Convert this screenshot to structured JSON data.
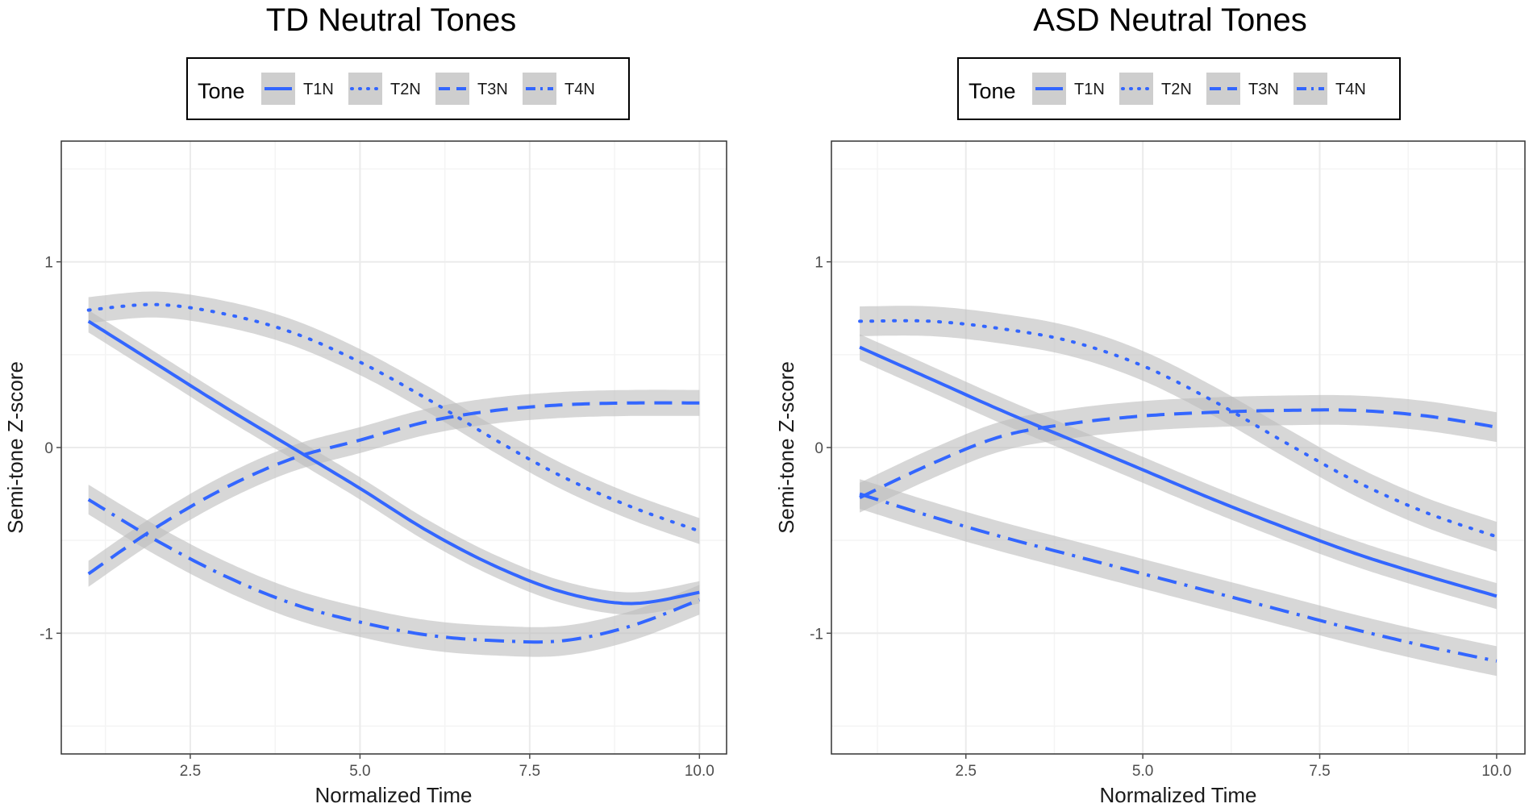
{
  "colors": {
    "line": "#3366FF",
    "ribbon": "#bdbdbd",
    "grid_major": "#ebebeb",
    "grid_minor": "#f4f4f4",
    "panel_border": "#333333",
    "tick": "#4d4d4d"
  },
  "chart_data": [
    {
      "type": "line",
      "title": "TD Neutral Tones",
      "xlabel": "Normalized Time",
      "ylabel": "Semi-tone Z-score",
      "xlim": [
        0.6,
        10.4
      ],
      "ylim": [
        -1.65,
        1.65
      ],
      "xticks": [
        2.5,
        5.0,
        7.5,
        10.0
      ],
      "xtick_labels": [
        "2.5",
        "5.0",
        "7.5",
        "10.0"
      ],
      "yticks": [
        -1,
        0,
        1
      ],
      "ytick_labels": [
        "-1",
        "0",
        "1"
      ],
      "legend": {
        "title": "Tone",
        "entries": [
          "T1N",
          "T2N",
          "T3N",
          "T4N"
        ]
      },
      "series": [
        {
          "name": "T1N",
          "dash": "solid",
          "se": 0.06,
          "x": [
            1,
            2,
            3,
            4,
            5,
            6,
            7,
            8,
            9,
            10
          ],
          "y": [
            0.68,
            0.45,
            0.22,
            0.0,
            -0.22,
            -0.45,
            -0.64,
            -0.78,
            -0.84,
            -0.78
          ]
        },
        {
          "name": "T2N",
          "dash": "dotted",
          "se": 0.07,
          "x": [
            1,
            2,
            3,
            4,
            5,
            6,
            7,
            8,
            9,
            10
          ],
          "y": [
            0.74,
            0.77,
            0.72,
            0.62,
            0.46,
            0.26,
            0.04,
            -0.16,
            -0.32,
            -0.45
          ]
        },
        {
          "name": "T3N",
          "dash": "dashed",
          "se": 0.07,
          "x": [
            1,
            2,
            3,
            4,
            5,
            6,
            7,
            8,
            9,
            10
          ],
          "y": [
            -0.68,
            -0.43,
            -0.22,
            -0.06,
            0.04,
            0.14,
            0.2,
            0.23,
            0.24,
            0.24
          ]
        },
        {
          "name": "T4N",
          "dash": "dotdash",
          "se": 0.08,
          "x": [
            1,
            2,
            3,
            4,
            5,
            6,
            7,
            8,
            9,
            10
          ],
          "y": [
            -0.28,
            -0.5,
            -0.69,
            -0.84,
            -0.94,
            -1.01,
            -1.04,
            -1.04,
            -0.96,
            -0.82
          ]
        }
      ]
    },
    {
      "type": "line",
      "title": "ASD Neutral Tones",
      "xlabel": "Normalized Time",
      "ylabel": "Semi-tone Z-score",
      "xlim": [
        0.6,
        10.4
      ],
      "ylim": [
        -1.65,
        1.65
      ],
      "xticks": [
        2.5,
        5.0,
        7.5,
        10.0
      ],
      "xtick_labels": [
        "2.5",
        "5.0",
        "7.5",
        "10.0"
      ],
      "yticks": [
        -1,
        0,
        1
      ],
      "ytick_labels": [
        "-1",
        "0",
        "1"
      ],
      "legend": {
        "title": "Tone",
        "entries": [
          "T1N",
          "T2N",
          "T3N",
          "T4N"
        ]
      },
      "series": [
        {
          "name": "T1N",
          "dash": "solid",
          "se": 0.07,
          "x": [
            1,
            2,
            3,
            4,
            5,
            6,
            7,
            8,
            9,
            10
          ],
          "y": [
            0.54,
            0.37,
            0.2,
            0.04,
            -0.12,
            -0.28,
            -0.43,
            -0.57,
            -0.69,
            -0.8
          ]
        },
        {
          "name": "T2N",
          "dash": "dotted",
          "se": 0.08,
          "x": [
            1,
            2,
            3,
            4,
            5,
            6,
            7,
            8,
            9,
            10
          ],
          "y": [
            0.68,
            0.68,
            0.64,
            0.57,
            0.44,
            0.25,
            0.03,
            -0.18,
            -0.35,
            -0.48
          ]
        },
        {
          "name": "T3N",
          "dash": "dashed",
          "se": 0.08,
          "x": [
            1,
            2,
            3,
            4,
            5,
            6,
            7,
            8,
            9,
            10
          ],
          "y": [
            -0.27,
            -0.09,
            0.06,
            0.13,
            0.17,
            0.19,
            0.2,
            0.2,
            0.17,
            0.11
          ]
        },
        {
          "name": "T4N",
          "dash": "dotdash",
          "se": 0.08,
          "x": [
            1,
            2,
            3,
            4,
            5,
            6,
            7,
            8,
            9,
            10
          ],
          "y": [
            -0.25,
            -0.37,
            -0.48,
            -0.58,
            -0.68,
            -0.78,
            -0.88,
            -0.98,
            -1.07,
            -1.15
          ]
        }
      ]
    }
  ]
}
